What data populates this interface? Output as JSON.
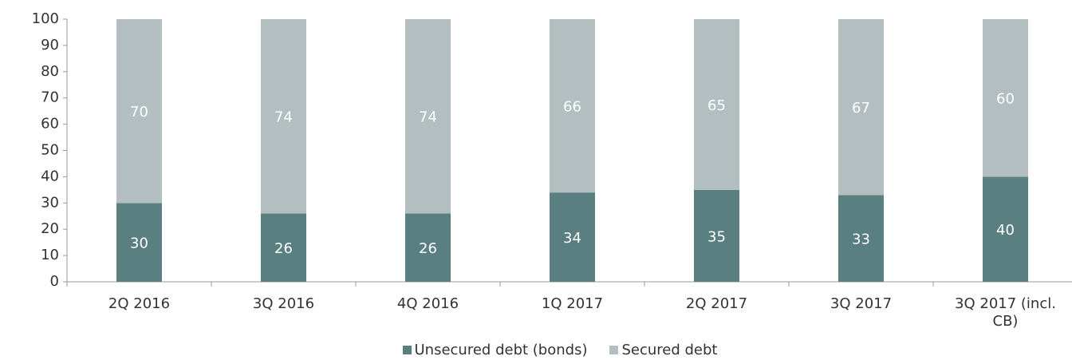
{
  "chart_data": {
    "type": "bar",
    "stacked": true,
    "categories": [
      "2Q 2016",
      "3Q 2016",
      "4Q 2016",
      "1Q 2017",
      "2Q 2017",
      "3Q 2017",
      "3Q 2017 (incl. CB)"
    ],
    "series": [
      {
        "name": "Unsecured debt (bonds)",
        "color": "#5a7f80",
        "values": [
          30,
          26,
          26,
          34,
          35,
          33,
          40
        ]
      },
      {
        "name": "Secured debt",
        "color": "#b3bec1",
        "values": [
          70,
          74,
          74,
          66,
          65,
          67,
          60
        ]
      }
    ],
    "ylim": [
      0,
      100
    ],
    "yticks": [
      0,
      10,
      20,
      30,
      40,
      50,
      60,
      70,
      80,
      90,
      100
    ],
    "grid": false
  }
}
